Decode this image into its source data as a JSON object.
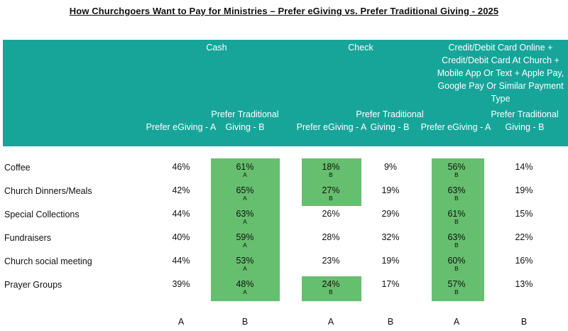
{
  "title": "How Churchgoers Want to Pay for Ministries – Prefer eGiving vs. Prefer Traditional Giving  - 2025",
  "groups": [
    {
      "label": "Cash"
    },
    {
      "label": "Check"
    },
    {
      "label": "Credit/Debit Card Online + Credit/Debit Card At Church + Mobile App Or Text + Apple Pay, Google Pay Or Similar Payment Type"
    }
  ],
  "subheaders": [
    {
      "label": "Prefer eGiving - A"
    },
    {
      "label": "Prefer Traditional Giving - B"
    },
    {
      "label": "Prefer eGiving - A"
    },
    {
      "label": "Prefer Traditional Giving - B"
    },
    {
      "label": "Prefer eGiving - A"
    },
    {
      "label": "Prefer Traditional Giving - B"
    }
  ],
  "highlight_color": "#66bf6e",
  "header_color": "#17a59a",
  "rows": [
    {
      "label": "Coffee",
      "cells": [
        {
          "value": "46%",
          "sig": ""
        },
        {
          "value": "61%",
          "sig": "A",
          "hl": true
        },
        {
          "value": "18%",
          "sig": "B",
          "hl": true
        },
        {
          "value": "9%",
          "sig": ""
        },
        {
          "value": "56%",
          "sig": "B",
          "hl": true
        },
        {
          "value": "14%",
          "sig": ""
        }
      ]
    },
    {
      "label": "Church Dinners/Meals",
      "cells": [
        {
          "value": "42%",
          "sig": ""
        },
        {
          "value": "65%",
          "sig": "A",
          "hl": true
        },
        {
          "value": "27%",
          "sig": "B",
          "hl": true
        },
        {
          "value": "19%",
          "sig": ""
        },
        {
          "value": "63%",
          "sig": "B",
          "hl": true
        },
        {
          "value": "19%",
          "sig": ""
        }
      ]
    },
    {
      "label": "Special Collections",
      "cells": [
        {
          "value": "44%",
          "sig": ""
        },
        {
          "value": "63%",
          "sig": "A",
          "hl": true
        },
        {
          "value": "26%",
          "sig": ""
        },
        {
          "value": "29%",
          "sig": ""
        },
        {
          "value": "61%",
          "sig": "B",
          "hl": true
        },
        {
          "value": "15%",
          "sig": ""
        }
      ]
    },
    {
      "label": "Fundraisers",
      "cells": [
        {
          "value": "40%",
          "sig": ""
        },
        {
          "value": "59%",
          "sig": "A",
          "hl": true
        },
        {
          "value": "28%",
          "sig": ""
        },
        {
          "value": "32%",
          "sig": ""
        },
        {
          "value": "63%",
          "sig": "B",
          "hl": true
        },
        {
          "value": "22%",
          "sig": ""
        }
      ]
    },
    {
      "label": "Church social meeting",
      "cells": [
        {
          "value": "44%",
          "sig": ""
        },
        {
          "value": "53%",
          "sig": "A",
          "hl": true
        },
        {
          "value": "23%",
          "sig": ""
        },
        {
          "value": "19%",
          "sig": ""
        },
        {
          "value": "60%",
          "sig": "B",
          "hl": true
        },
        {
          "value": "16%",
          "sig": ""
        }
      ]
    },
    {
      "label": "Prayer Groups",
      "cells": [
        {
          "value": "39%",
          "sig": ""
        },
        {
          "value": "48%",
          "sig": "A",
          "hl": true
        },
        {
          "value": "24%",
          "sig": "B",
          "hl": true
        },
        {
          "value": "17%",
          "sig": ""
        },
        {
          "value": "57%",
          "sig": "B",
          "hl": true
        },
        {
          "value": "13%",
          "sig": ""
        }
      ]
    }
  ],
  "footer_letters": [
    "A",
    "B",
    "A",
    "B",
    "A",
    "B"
  ]
}
